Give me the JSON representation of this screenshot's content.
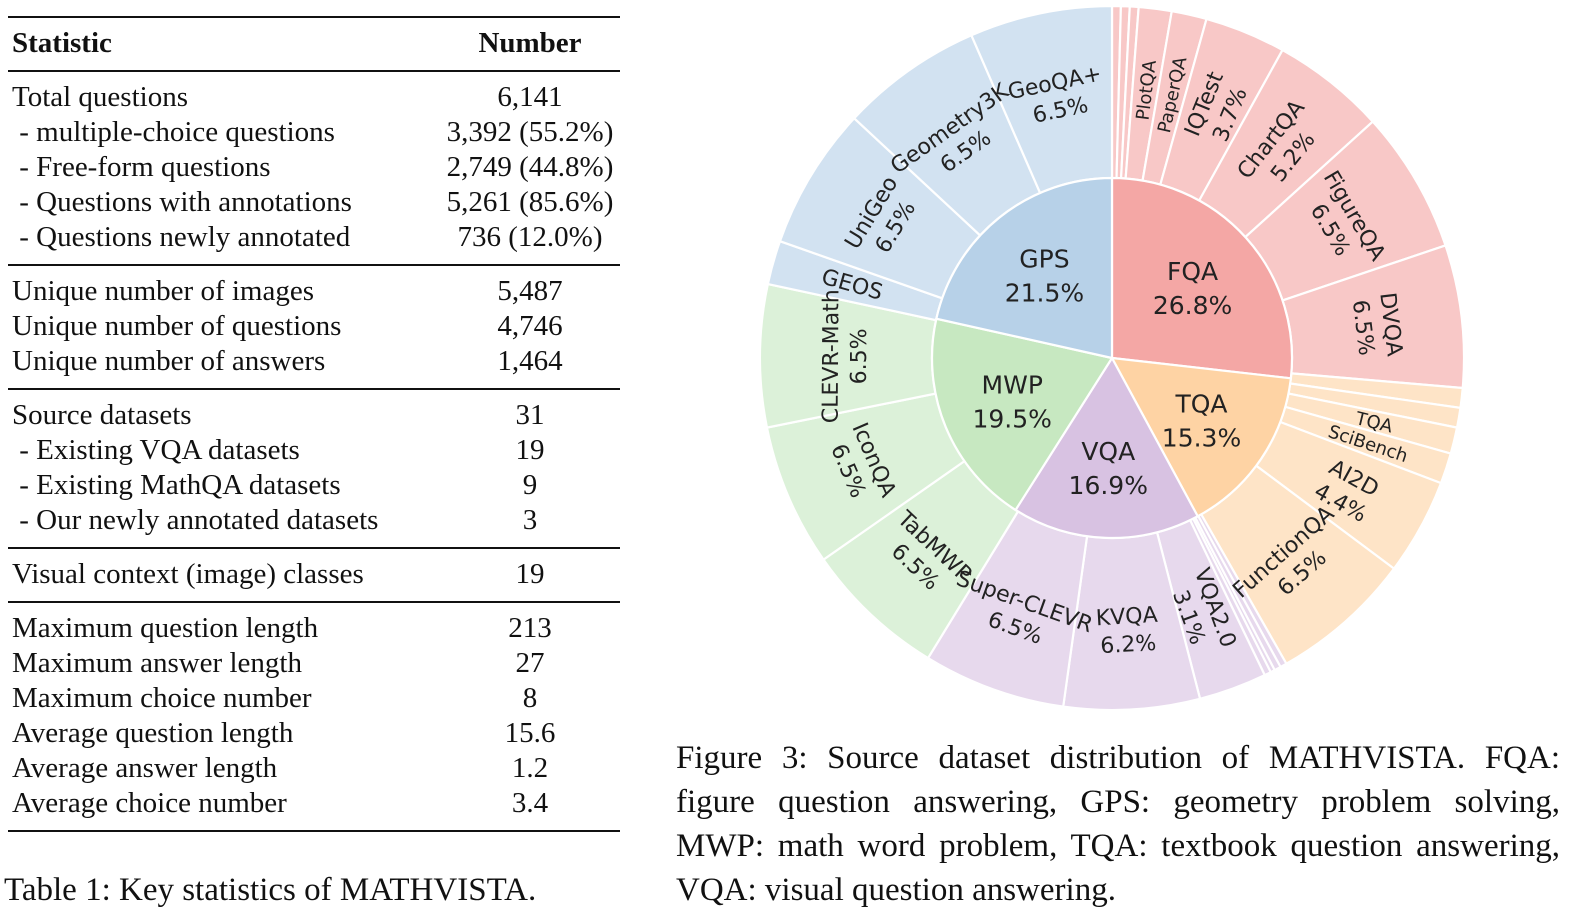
{
  "table": {
    "header": {
      "statistic": "Statistic",
      "number": "Number"
    },
    "groups": [
      [
        {
          "label": "Total questions",
          "value": "6,141"
        },
        {
          "label": " - multiple-choice questions",
          "value": "3,392 (55.2%)"
        },
        {
          "label": " - Free-form questions",
          "value": "2,749 (44.8%)"
        },
        {
          "label": " - Questions with annotations",
          "value": "5,261 (85.6%)"
        },
        {
          "label": " - Questions newly annotated",
          "value": "736 (12.0%)"
        }
      ],
      [
        {
          "label": "Unique number of images",
          "value": "5,487"
        },
        {
          "label": "Unique number of questions",
          "value": "4,746"
        },
        {
          "label": "Unique number of answers",
          "value": "1,464"
        }
      ],
      [
        {
          "label": "Source datasets",
          "value": "31"
        },
        {
          "label": " - Existing VQA datasets",
          "value": "19"
        },
        {
          "label": " - Existing MathQA datasets",
          "value": "9"
        },
        {
          "label": " - Our newly annotated datasets",
          "value": "3"
        }
      ],
      [
        {
          "label": "Visual context (image) classes",
          "value": "19"
        }
      ],
      [
        {
          "label": "Maximum question length",
          "value": "213"
        },
        {
          "label": "Maximum answer length",
          "value": "27"
        },
        {
          "label": "Maximum choice number",
          "value": "8"
        },
        {
          "label": "Average question length",
          "value": "15.6"
        },
        {
          "label": "Average answer length",
          "value": "1.2"
        },
        {
          "label": "Average choice number",
          "value": "3.4"
        }
      ]
    ],
    "caption_prefix": "Table 1: Key statistics of ",
    "caption_m": "M",
    "caption_ath": "ATH",
    "caption_v": "V",
    "caption_ista": "ISTA",
    "caption_end": "."
  },
  "chart_data": {
    "type": "sunburst",
    "inner": [
      {
        "name": "FQA",
        "value": 26.8,
        "label": "26.8%",
        "color": "#f4a7a5"
      },
      {
        "name": "TQA",
        "value": 15.3,
        "label": "15.3%",
        "color": "#fed3a4"
      },
      {
        "name": "VQA",
        "value": 16.9,
        "label": "16.9%",
        "color": "#d8c2e2"
      },
      {
        "name": "MWP",
        "value": 19.5,
        "label": "19.5%",
        "color": "#c7e8c1"
      },
      {
        "name": "GPS",
        "value": 21.5,
        "label": "21.5%",
        "color": "#b7d1e8"
      }
    ],
    "outer": [
      {
        "parent": "FQA",
        "name": "",
        "value": 0.4,
        "label": ""
      },
      {
        "parent": "FQA",
        "name": "",
        "value": 0.4,
        "label": ""
      },
      {
        "parent": "FQA",
        "name": "",
        "value": 0.4,
        "label": ""
      },
      {
        "parent": "FQA",
        "name": "PlotQA",
        "value": 1.5,
        "label": ""
      },
      {
        "parent": "FQA",
        "name": "PaperQA",
        "value": 1.6,
        "label": ""
      },
      {
        "parent": "FQA",
        "name": "IQTest",
        "value": 3.7,
        "label": "3.7%"
      },
      {
        "parent": "FQA",
        "name": "ChartQA",
        "value": 5.2,
        "label": "5.2%"
      },
      {
        "parent": "FQA",
        "name": "FigureQA",
        "value": 6.5,
        "label": "6.5%"
      },
      {
        "parent": "FQA",
        "name": "DVQA",
        "value": 6.5,
        "label": "6.5%"
      },
      {
        "parent": "TQA",
        "name": "",
        "value": 0.9,
        "label": ""
      },
      {
        "parent": "TQA",
        "name": "",
        "value": 0.9,
        "label": ""
      },
      {
        "parent": "TQA",
        "name": "TQA",
        "value": 1.2,
        "label": ""
      },
      {
        "parent": "TQA",
        "name": "SciBench",
        "value": 1.4,
        "label": ""
      },
      {
        "parent": "TQA",
        "name": "AI2D",
        "value": 4.4,
        "label": "4.4%"
      },
      {
        "parent": "TQA",
        "name": "FunctionQA",
        "value": 6.5,
        "label": "6.5%"
      },
      {
        "parent": "VQA",
        "name": "",
        "value": 0.3,
        "label": ""
      },
      {
        "parent": "VQA",
        "name": "",
        "value": 0.3,
        "label": ""
      },
      {
        "parent": "VQA",
        "name": "",
        "value": 0.2,
        "label": ""
      },
      {
        "parent": "VQA",
        "name": "",
        "value": 0.3,
        "label": ""
      },
      {
        "parent": "VQA",
        "name": "VQA2.0",
        "value": 3.1,
        "label": "3.1%"
      },
      {
        "parent": "VQA",
        "name": "KVQA",
        "value": 6.2,
        "label": "6.2%"
      },
      {
        "parent": "VQA",
        "name": "Super-CLEVR",
        "value": 6.5,
        "label": "6.5%"
      },
      {
        "parent": "MWP",
        "name": "TabMWP",
        "value": 6.5,
        "label": "6.5%"
      },
      {
        "parent": "MWP",
        "name": "IconQA",
        "value": 6.5,
        "label": "6.5%"
      },
      {
        "parent": "MWP",
        "name": "CLEVR-Math",
        "value": 6.5,
        "label": "6.5%"
      },
      {
        "parent": "GPS",
        "name": "GEOS",
        "value": 2.0,
        "label": ""
      },
      {
        "parent": "GPS",
        "name": "UniGeo",
        "value": 6.5,
        "label": "6.5%"
      },
      {
        "parent": "GPS",
        "name": "Geometry3K",
        "value": 6.5,
        "label": "6.5%"
      },
      {
        "parent": "GPS",
        "name": "GeoQA+",
        "value": 6.5,
        "label": "6.5%"
      }
    ]
  },
  "figure": {
    "caption_prefix": "Figure 3:  Source dataset distribution of ",
    "caption_m": "M",
    "caption_ath": "ATH",
    "caption_v": "V",
    "caption_ista": "ISTA",
    "caption_rest": ". FQA: figure question answering, GPS: geometry problem solving, MWP: math word problem, TQA: textbook question answering, VQA: visual question answering."
  }
}
